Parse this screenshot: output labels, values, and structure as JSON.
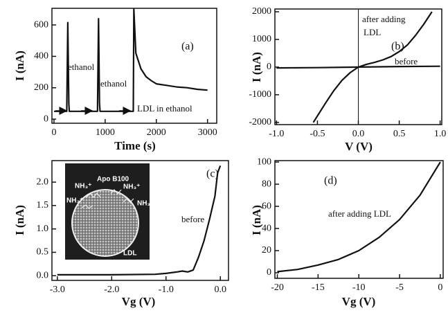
{
  "chart_data": [
    {
      "type": "line",
      "panel": "(a)",
      "x_label": "Time (s)",
      "y_label": "I (nA)",
      "xlim": [
        -40,
        3180
      ],
      "ylim": [
        -26,
        706
      ],
      "xticks": [
        0,
        1000,
        2000,
        3000
      ],
      "yticks": [
        0,
        200,
        400,
        600
      ],
      "annotations": [
        "ethanol",
        "ethanol",
        "LDL in ethanol"
      ],
      "series": [
        {
          "color": "#111111",
          "x": [
            0,
            250,
            270,
            290,
            300,
            850,
            870,
            890,
            900,
            1550,
            1560,
            1600,
            1700,
            1800,
            1900,
            2000,
            2200,
            2400,
            2600,
            2800,
            3000
          ],
          "values": [
            50,
            50,
            615,
            100,
            50,
            50,
            640,
            100,
            50,
            50,
            700,
            420,
            320,
            270,
            245,
            225,
            215,
            205,
            200,
            190,
            185
          ]
        }
      ]
    },
    {
      "type": "line",
      "panel": "(b)",
      "x_label": "V (V)",
      "y_label": "I (nA)",
      "xlim": [
        -1.02,
        1.02
      ],
      "ylim": [
        -2080,
        2100
      ],
      "xticks": [
        {
          "value": -1,
          "label": "-1.0"
        },
        -0.5,
        {
          "value": 0,
          "label": "0.0"
        },
        0.5,
        {
          "value": 1,
          "label": "1.0"
        }
      ],
      "yticks": [
        -2000,
        -1000,
        0,
        1000,
        2000
      ],
      "annotations": [
        "after adding",
        "LDL",
        "before"
      ],
      "series": [
        {
          "color": "#111111",
          "x": [
            -0.55,
            -0.4,
            -0.3,
            -0.2,
            -0.1,
            0,
            0.1,
            0.2,
            0.3,
            0.4,
            0.5,
            0.6,
            0.7,
            0.8,
            0.9
          ],
          "values": [
            -2000,
            -1300,
            -850,
            -480,
            -200,
            0,
            100,
            170,
            260,
            380,
            560,
            800,
            1150,
            1550,
            2000
          ]
        },
        {
          "color": "#111111",
          "x": [
            -1.0,
            -0.5,
            0,
            0.5,
            1.0
          ],
          "values": [
            -30,
            -20,
            0,
            20,
            30
          ]
        }
      ]
    },
    {
      "type": "line",
      "panel": "(c)",
      "x_label": "Vg (V)",
      "y_label": "I (nA)",
      "xlim": [
        -3.1,
        0.15
      ],
      "ylim": [
        -0.1,
        2.46
      ],
      "xticks": [
        {
          "value": -3,
          "label": "-3.0"
        },
        {
          "value": -2,
          "label": "-2.0"
        },
        {
          "value": -1,
          "label": "-1.0"
        },
        {
          "value": 0,
          "label": "0.0"
        }
      ],
      "yticks": [
        {
          "value": 0,
          "label": "0.0"
        },
        0.5,
        {
          "value": 1,
          "label": "1.0"
        },
        1.5,
        {
          "value": 2,
          "label": "2.0"
        }
      ],
      "annotations": [
        "before"
      ],
      "inset": {
        "labels": [
          "Apo B100",
          "NH₃⁺",
          "NH₃⁺",
          "NH₃⁺",
          "NH₃⁺",
          "LDL"
        ]
      },
      "series": [
        {
          "color": "#111111",
          "x": [
            -3.0,
            -2.0,
            -1.2,
            -1.0,
            -0.8,
            -0.7,
            -0.6,
            -0.5,
            -0.4,
            -0.3,
            -0.2,
            -0.1,
            -0.05,
            0
          ],
          "values": [
            0.02,
            0.02,
            0.03,
            0.05,
            0.08,
            0.1,
            0.08,
            0.12,
            0.4,
            0.75,
            1.2,
            1.7,
            2.2,
            2.35
          ]
        }
      ]
    },
    {
      "type": "line",
      "panel": "(d)",
      "x_label": "Vg (V)",
      "y_label": "I (nA)",
      "xlim": [
        -20.3,
        0.35
      ],
      "ylim": [
        -5,
        101.3
      ],
      "xticks": [
        -20,
        -15,
        -10,
        -5,
        0
      ],
      "yticks": [
        0,
        20,
        40,
        60,
        80,
        100
      ],
      "annotations": [
        "after adding LDL"
      ],
      "series": [
        {
          "color": "#111111",
          "x": [
            -20,
            -17.5,
            -15,
            -12.5,
            -10,
            -7.5,
            -5,
            -2.5,
            0
          ],
          "values": [
            1,
            3,
            7,
            12,
            20,
            32,
            48,
            70,
            100
          ]
        }
      ]
    }
  ]
}
